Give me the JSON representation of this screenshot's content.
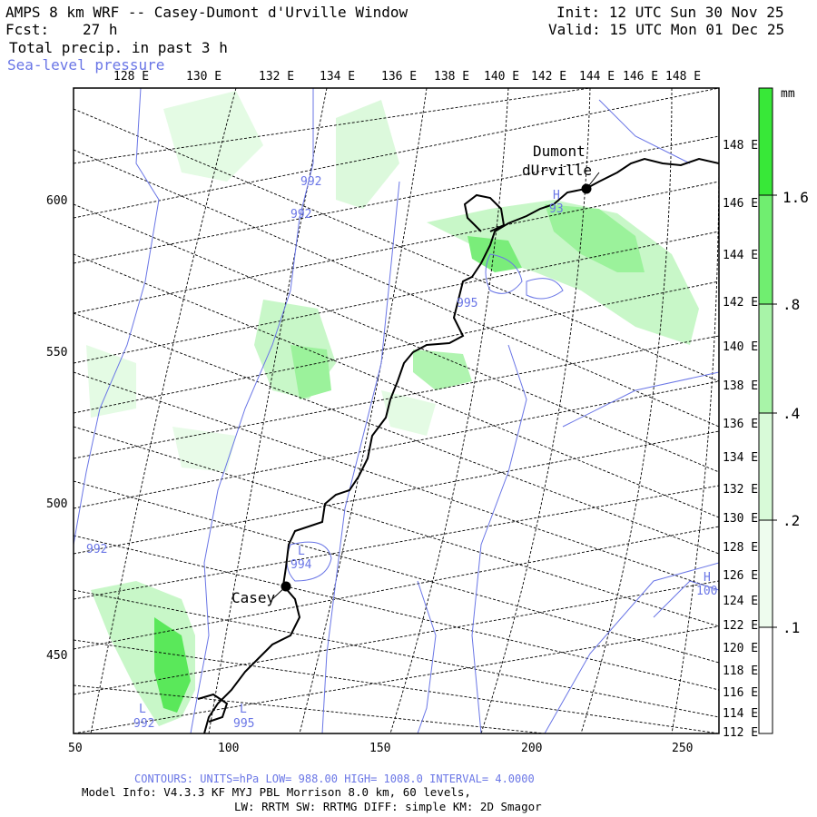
{
  "header": {
    "title": "AMPS 8 km WRF -- Casey-Dumont d'Urville Window",
    "init": "Init: 12 UTC Sun 30 Nov 25",
    "fcst_label": "Fcst:",
    "fcst_value": "27 h",
    "valid": "Valid: 15 UTC Mon 01 Dec 25",
    "field_line": "Total precip. in past 3 h",
    "contour_field": "Sea-level pressure"
  },
  "axes": {
    "top_lon_labels": [
      "128 E",
      "130 E",
      "132 E",
      "134 E",
      "136 E",
      "138 E",
      "140 E",
      "142 E",
      "144 E",
      "146 E",
      "148 E"
    ],
    "right_lon_labels": [
      "148 E",
      "146 E",
      "144 E",
      "142 E",
      "140 E",
      "138 E",
      "136 E",
      "134 E",
      "132 E",
      "130 E",
      "128 E",
      "126 E",
      "124 E",
      "122 E",
      "120 E",
      "118 E",
      "116 E",
      "114 E",
      "112 E"
    ],
    "x_ticks": [
      "50",
      "100",
      "150",
      "200",
      "250"
    ],
    "y_ticks": [
      "600",
      "550",
      "500",
      "450"
    ]
  },
  "colorbar": {
    "unit": "mm",
    "labels": [
      "1.6",
      ".8",
      ".4",
      ".2",
      ".1"
    ],
    "colors": [
      "#38e838",
      "#70ee70",
      "#a8f4a8",
      "#d8fad8",
      "#ffffff"
    ],
    "thresholds": [
      0.1,
      0.2,
      0.4,
      0.8,
      1.6
    ]
  },
  "stations": [
    {
      "name": "Dumont",
      "name2": "dUrville"
    },
    {
      "name": "Casey"
    }
  ],
  "pressure_labels": [
    {
      "symbol": "H",
      "value": "93"
    },
    {
      "symbol": "L",
      "value": "994"
    },
    {
      "symbol": "H",
      "value": "100"
    },
    {
      "symbol": "L",
      "value": "992"
    },
    {
      "symbol": "L",
      "value": "995"
    },
    {
      "symbol": "",
      "value": "992"
    },
    {
      "symbol": "",
      "value": "992"
    },
    {
      "symbol": "",
      "value": "992"
    },
    {
      "symbol": "",
      "value": "995"
    }
  ],
  "footer": {
    "contours": "CONTOURS:  UNITS=hPa  LOW=  988.00     HIGH=  1008.0     INTERVAL=   4.0000",
    "model_info": "Model Info: V4.3.3   KF      MYJ PBL  Morrison         8.0 km,  60 levels,",
    "model_info2": "LW: RRTM SW: RRTMG   DIFF: simple KM: 2D Smagor"
  },
  "colors": {
    "contour_blue": "#6a76e6",
    "coast": "#000000",
    "grid": "#000000"
  }
}
